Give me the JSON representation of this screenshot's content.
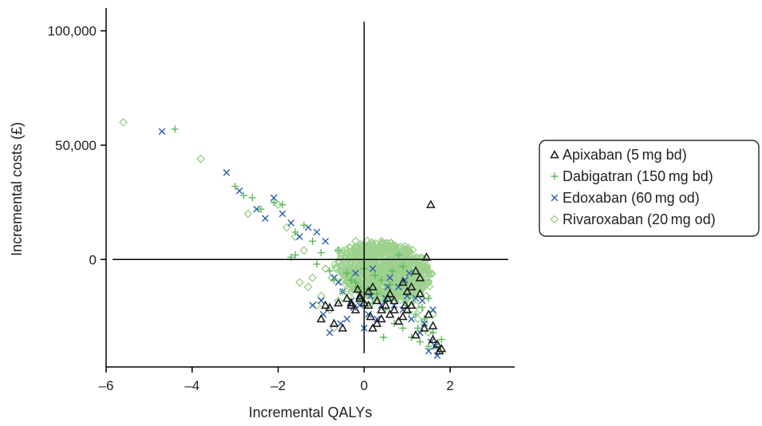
{
  "chart_data": {
    "type": "scatter",
    "title": "",
    "xlabel": "Incremental QALYs",
    "ylabel": "Incremental costs (£)",
    "xlim": [
      -6,
      3.5
    ],
    "ylim": [
      -47000,
      110000
    ],
    "x_ticks": [
      -6,
      -4,
      -2,
      0,
      2
    ],
    "x_tick_labels": [
      "–6",
      "–4",
      "–2",
      "0",
      "2"
    ],
    "y_ticks": [
      0,
      50000,
      100000
    ],
    "y_tick_labels": [
      "0",
      "50,000",
      "100,000"
    ],
    "reference_lines": {
      "x": 0,
      "y": 0
    },
    "legend": {
      "position": "right",
      "boxed": true
    },
    "grid": false,
    "series": [
      {
        "name": "Apixaban (5 mg bd)",
        "marker": "triangle",
        "color": "#1a1a1a",
        "x": [
          1.8,
          1.7,
          1.6,
          1.5,
          1.4,
          1.2,
          1.1,
          1.0,
          0.9,
          0.8,
          0.7,
          0.6,
          0.5,
          0.4,
          0.3,
          0.2,
          0.1,
          0.0,
          -0.1,
          -0.2,
          -0.3,
          -0.5,
          -0.7,
          -0.8,
          -1.0,
          1.3,
          1.1,
          0.6,
          0.3,
          -0.1,
          -0.6,
          1.6,
          1.0,
          0.4,
          -0.4,
          1.45,
          1.2,
          0.9,
          0.2,
          -0.3,
          1.75,
          1.55,
          0.95,
          0.55,
          0.15,
          -0.15,
          -0.9,
          1.3,
          0.7,
          0.1
        ],
        "y": [
          -39000,
          -37000,
          -35000,
          -24000,
          -30000,
          -33000,
          -20000,
          -22000,
          -25000,
          -27000,
          -22000,
          -24000,
          -20000,
          -26000,
          -18000,
          -30000,
          -20000,
          -19000,
          -17000,
          -22000,
          -20000,
          -30000,
          -28000,
          -21000,
          -26000,
          -15000,
          -12000,
          -15000,
          -28000,
          -16000,
          -19000,
          -29000,
          -14000,
          -22000,
          -17000,
          1000,
          -5000,
          -10000,
          -12000,
          -19000,
          -40000,
          24000,
          -20000,
          -17000,
          -25000,
          -13000,
          -20000,
          -8000,
          -18000,
          -14000
        ]
      },
      {
        "name": "Dabigatran (150 mg bd)",
        "marker": "plus",
        "color": "#5cb85c",
        "x": [
          -4.4,
          -3.0,
          -2.8,
          -2.6,
          -2.4,
          -2.1,
          -1.9,
          -1.7,
          -1.6,
          -1.4,
          -1.2,
          -1.0,
          -0.8,
          -0.6,
          -0.4,
          -0.2,
          0.1,
          0.3,
          0.5,
          0.7,
          0.9,
          1.1,
          1.3,
          1.5,
          1.7,
          0.8,
          0.4,
          -0.1,
          1.6,
          1.2,
          0.6,
          0.2,
          -0.5,
          1.0,
          1.4,
          0.0,
          -0.3,
          0.9,
          1.5,
          1.8,
          -1.6,
          -1.1,
          0.45,
          1.05,
          1.35,
          -0.7,
          0.25,
          0.65,
          -0.15,
          1.25
        ],
        "y": [
          57000,
          32000,
          28000,
          27000,
          22000,
          25000,
          24000,
          1000,
          12000,
          15000,
          8000,
          3000,
          -5000,
          4000,
          -6000,
          -10000,
          -13000,
          -15000,
          -22000,
          -28000,
          -30000,
          -34000,
          -36000,
          -38000,
          -39000,
          2000,
          -9000,
          -18000,
          -32000,
          -24000,
          -11000,
          -19000,
          -14000,
          -20000,
          -26000,
          -4000,
          -9000,
          -3000,
          -17000,
          -35000,
          2000,
          -2000,
          -34000,
          -23000,
          -21000,
          -9000,
          -7000,
          -5000,
          -12000,
          -30000
        ]
      },
      {
        "name": "Edoxaban (60 mg od)",
        "marker": "x",
        "color": "#2a5fb0",
        "x": [
          -4.7,
          -3.2,
          -2.9,
          -2.5,
          -2.3,
          -2.1,
          -1.9,
          -1.7,
          -1.5,
          -1.3,
          -1.1,
          -0.9,
          -0.7,
          -0.5,
          -0.3,
          -0.1,
          0.1,
          0.3,
          0.5,
          0.7,
          0.9,
          1.1,
          1.3,
          1.5,
          1.7,
          -0.8,
          -0.4,
          0.0,
          0.4,
          0.8,
          1.2,
          1.6,
          -1.0,
          -0.6,
          -0.2,
          0.2,
          0.6,
          1.0,
          1.4,
          1.55,
          -1.2,
          -0.95,
          -0.55,
          -0.25,
          0.15,
          0.55,
          0.95,
          1.35,
          1.65,
          1.05
        ],
        "y": [
          56000,
          38000,
          30000,
          22000,
          18000,
          27000,
          20000,
          16000,
          10000,
          14000,
          12000,
          8000,
          -8000,
          -14000,
          -18000,
          -20000,
          -24000,
          -26000,
          -17000,
          -20000,
          -22000,
          -26000,
          -32000,
          -40000,
          -42000,
          -32000,
          -26000,
          -30000,
          -20000,
          -12000,
          -17000,
          -22000,
          -18000,
          -10000,
          -6000,
          -4000,
          -8000,
          -16000,
          -28000,
          -36000,
          -20000,
          -24000,
          -28000,
          -21000,
          -16000,
          -12000,
          -9000,
          -18000,
          -38000,
          -6000
        ]
      },
      {
        "name": "Rivaroxaban (20 mg od)",
        "marker": "diamond",
        "color": "#9dd18e",
        "x": [
          -5.6,
          -3.8,
          -2.7,
          -2.0,
          -1.8,
          -1.6,
          -1.4,
          -1.2,
          -1.0,
          -0.8,
          -0.6,
          -0.4,
          -0.2,
          0.0,
          0.2,
          0.4,
          0.6,
          0.8,
          1.0,
          1.2,
          1.4,
          1.6,
          -1.5,
          -1.1,
          -0.7,
          -0.3,
          0.1,
          0.5,
          0.9,
          1.3,
          -0.9,
          -0.5,
          -0.1,
          0.3,
          0.7,
          1.1,
          1.5,
          -1.3,
          -0.75,
          -0.35,
          0.05,
          0.45,
          0.85,
          1.25,
          -0.6,
          -0.2,
          0.25,
          0.65,
          1.05,
          1.45
        ],
        "y": [
          60000,
          44000,
          20000,
          24000,
          14000,
          10000,
          4000,
          -8000,
          -16000,
          -22000,
          -18000,
          -10000,
          -4000,
          2000,
          6000,
          8000,
          -2000,
          -6000,
          -12000,
          -20000,
          -28000,
          -24000,
          -10000,
          -20000,
          -30000,
          -14000,
          -8000,
          -4000,
          -14000,
          -22000,
          -4000,
          2000,
          -6000,
          -10000,
          -12000,
          -18000,
          -32000,
          -12000,
          -8000,
          -16000,
          -20000,
          -12000,
          -8000,
          -26000,
          4000,
          8000,
          -2000,
          3000,
          -4000,
          -16000
        ]
      }
    ],
    "cloud_note": ""
  }
}
